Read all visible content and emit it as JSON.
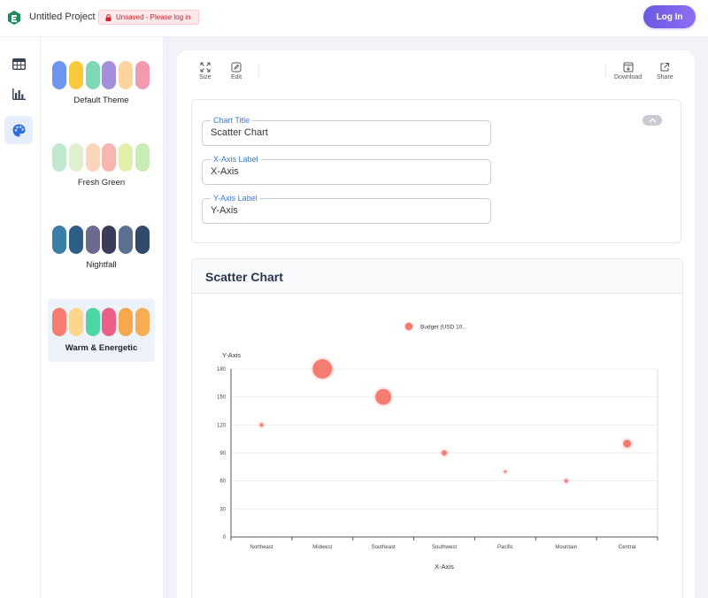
{
  "app": {
    "project_name": "Untitled Project",
    "unsaved_text": "Unsaved - Please log in",
    "login_label": "Log In"
  },
  "rail": {
    "items": [
      {
        "name": "table-icon",
        "active": false
      },
      {
        "name": "bar-chart-icon",
        "active": false
      },
      {
        "name": "palette-icon",
        "active": true
      }
    ]
  },
  "themes": [
    {
      "label": "Default Theme",
      "colors": [
        "#6b95f0",
        "#f9c93d",
        "#7ed8b6",
        "#a38fdc",
        "#fdd49c",
        "#f19ab2"
      ]
    },
    {
      "label": "Fresh Green",
      "colors": [
        "#bfe8cf",
        "#e0f0cf",
        "#fcd6bc",
        "#f7b6b0",
        "#e3f0a9",
        "#c7ecb6"
      ]
    },
    {
      "label": "Nightfall",
      "colors": [
        "#3b7ea8",
        "#2e5e86",
        "#6c6a8f",
        "#3a3d5a",
        "#5d7292",
        "#2f4a6a"
      ]
    },
    {
      "label": "Warm & Energetic",
      "colors": [
        "#f57c70",
        "#fdd58b",
        "#4dd6a5",
        "#ec5f86",
        "#f7a84b",
        "#f7ad52"
      ],
      "selected": true
    }
  ],
  "toolbar": {
    "size_label": "Size",
    "edit_label": "Edit",
    "download_label": "Download",
    "share_label": "Share"
  },
  "settings": {
    "chart_title_label": "Chart Title",
    "chart_title_value": "Scatter Chart",
    "x_label_label": "X-Axis Label",
    "x_label_value": "X-Axis",
    "y_label_label": "Y-Axis Label",
    "y_label_value": "Y-Axis"
  },
  "chart_data": {
    "type": "scatter",
    "title": "Scatter Chart",
    "xlabel": "X-Axis",
    "ylabel": "Y-Axis",
    "categories": [
      "Northeast",
      "Midwest",
      "Southeast",
      "Southwest",
      "Pacific",
      "Mountain",
      "Central"
    ],
    "series": [
      {
        "name": "Budget (USD 10...",
        "color": "#f57c70",
        "values": [
          120,
          180,
          150,
          90,
          70,
          60,
          100
        ],
        "sizes": [
          2,
          11,
          9,
          3,
          1.5,
          2,
          4.5
        ]
      }
    ],
    "ylim": [
      0,
      180
    ],
    "yticks": [
      0,
      30,
      60,
      90,
      120,
      150,
      180
    ],
    "grid": true,
    "legend": "top-center"
  }
}
